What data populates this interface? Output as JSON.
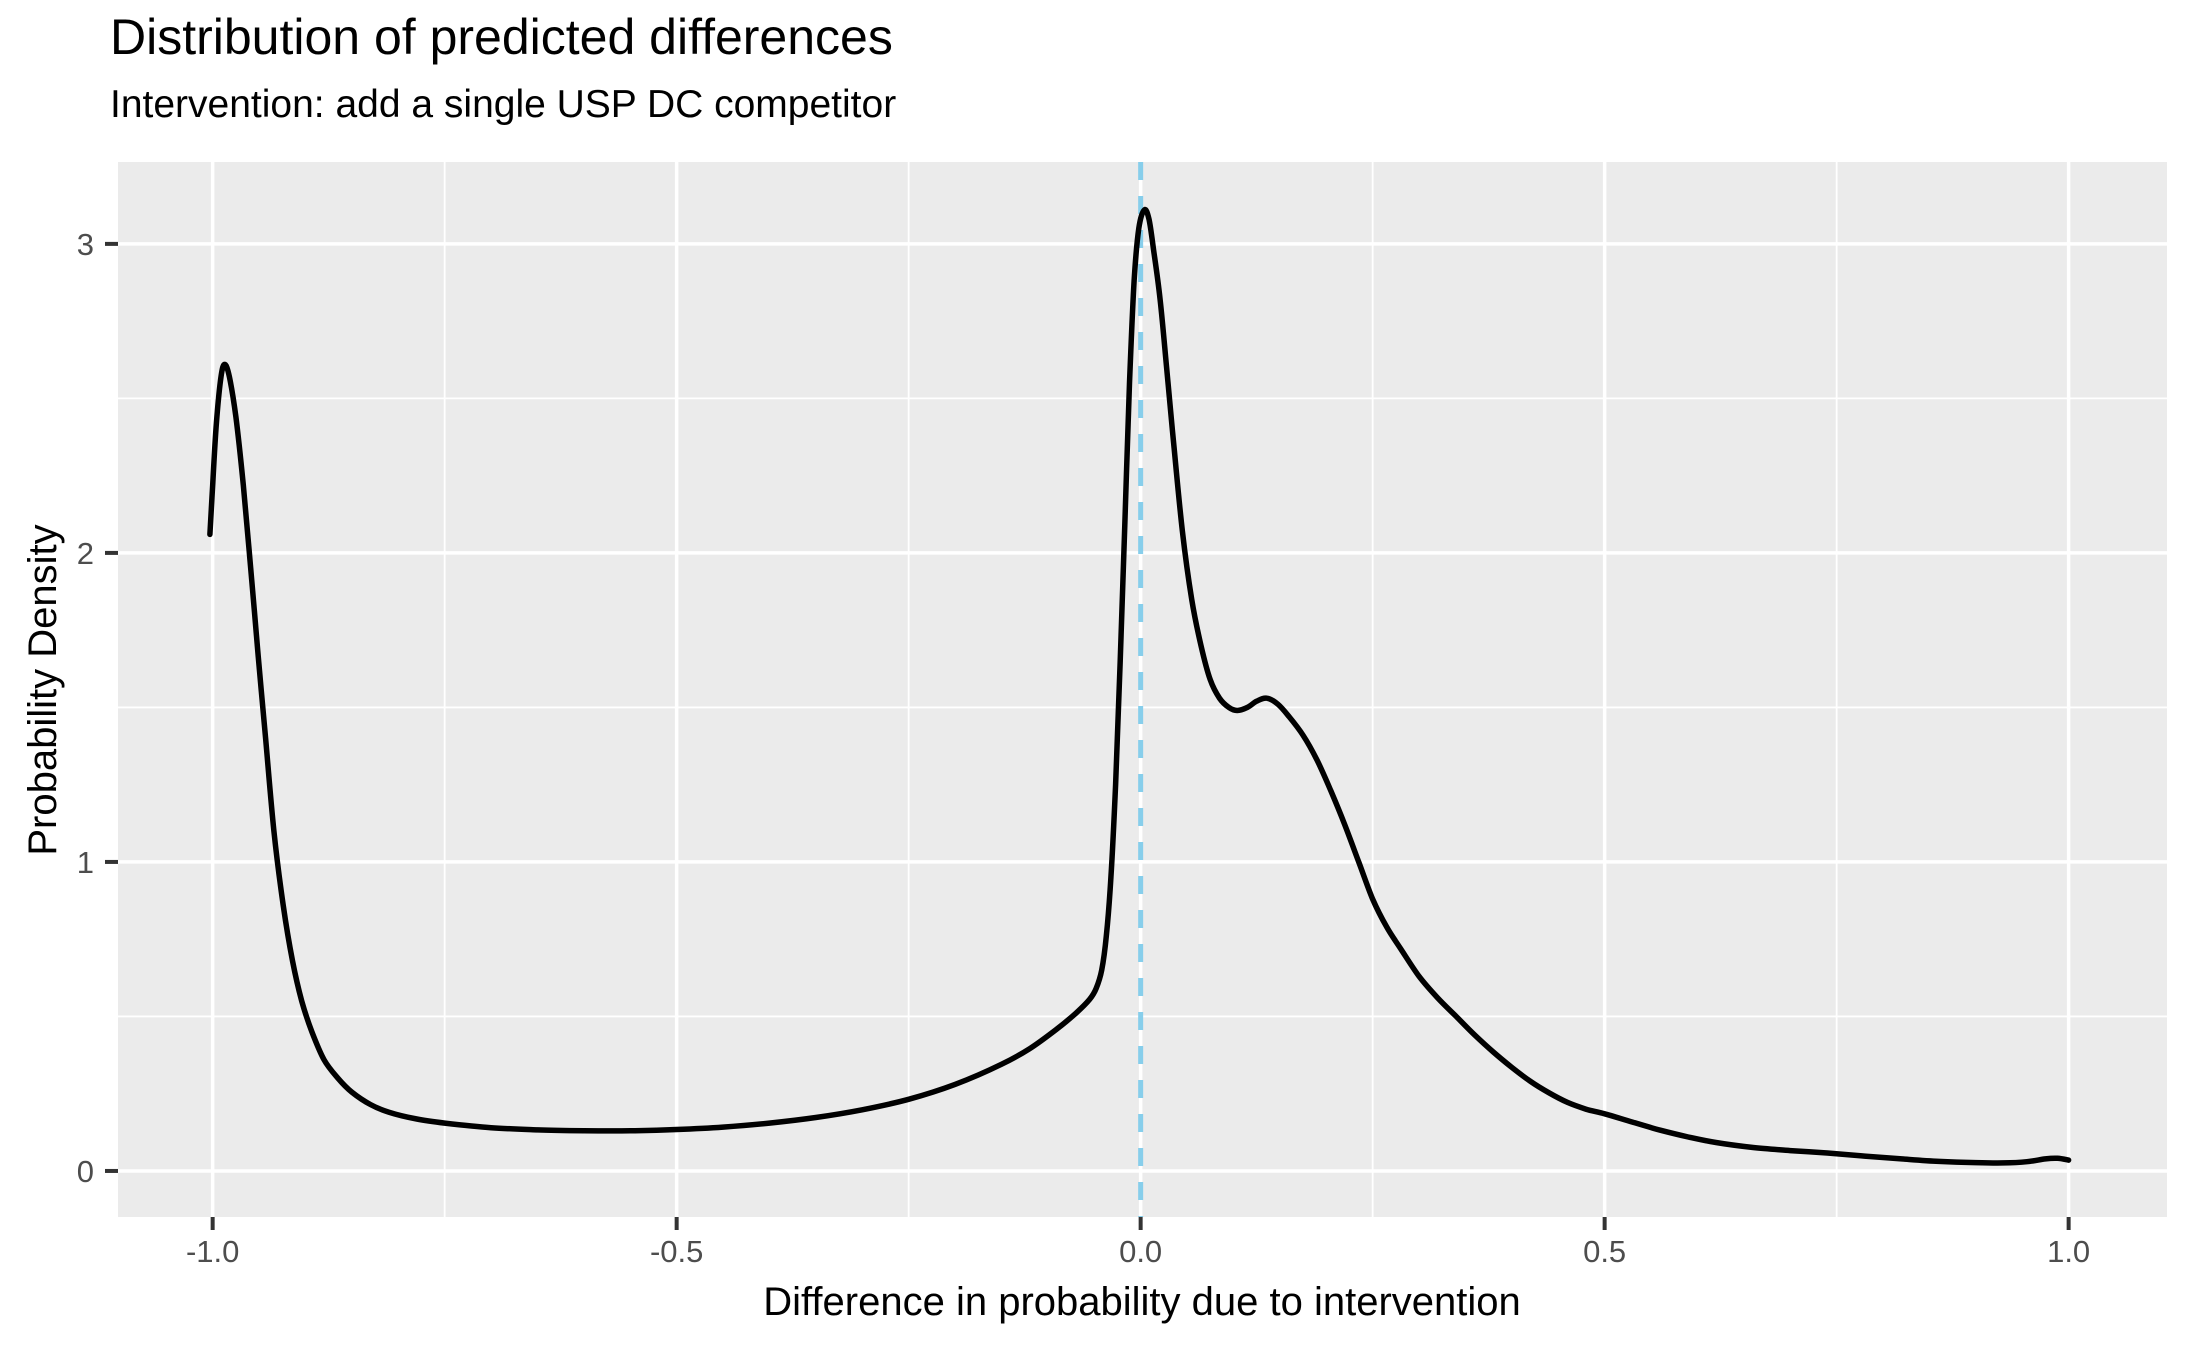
{
  "header": {
    "title": "Distribution of predicted differences",
    "subtitle": "Intervention: add a single USP DC competitor"
  },
  "chart_data": {
    "type": "line",
    "subtype": "density",
    "title": "Distribution of predicted differences",
    "subtitle": "Intervention: add a single USP DC competitor",
    "xlabel": "Difference in probability due to intervention",
    "ylabel": "Probability Density",
    "xlim": [
      -1.102,
      1.106
    ],
    "ylim": [
      -0.149,
      3.265
    ],
    "x_ticks": {
      "values": [
        -1.0,
        -0.5,
        0.0,
        0.5,
        1.0
      ],
      "labels": [
        "-1.0",
        "-0.5",
        "0.0",
        "0.5",
        "1.0"
      ]
    },
    "y_ticks": {
      "values": [
        0,
        1,
        2,
        3
      ],
      "labels": [
        "0",
        "1",
        "2",
        "3"
      ]
    },
    "x_minor_gridlines": [
      -0.75,
      -0.25,
      0.25,
      0.75
    ],
    "y_minor_gridlines": [
      0.5,
      1.5,
      2.5
    ],
    "grid": "on",
    "legend": "none",
    "panel_background_color": "#EBEBEB",
    "gridline_color": "#FFFFFF",
    "tick_label_color": "#4D4D4D",
    "tick_mark_color": "#333333",
    "reference_line": {
      "x": 0,
      "style": "dashed",
      "color": "#87CEEB",
      "orientation": "vertical"
    },
    "series": [
      {
        "name": "predicted-difference-density",
        "color": "#000000",
        "points": [
          [
            -1.003,
            2.06
          ],
          [
            -1.0,
            2.22
          ],
          [
            -0.996,
            2.42
          ],
          [
            -0.991,
            2.57
          ],
          [
            -0.987,
            2.61
          ],
          [
            -0.982,
            2.57
          ],
          [
            -0.975,
            2.44
          ],
          [
            -0.967,
            2.22
          ],
          [
            -0.959,
            1.95
          ],
          [
            -0.951,
            1.67
          ],
          [
            -0.943,
            1.4
          ],
          [
            -0.934,
            1.1
          ],
          [
            -0.924,
            0.86
          ],
          [
            -0.914,
            0.68
          ],
          [
            -0.904,
            0.55
          ],
          [
            -0.893,
            0.45
          ],
          [
            -0.88,
            0.36
          ],
          [
            -0.865,
            0.3
          ],
          [
            -0.85,
            0.255
          ],
          [
            -0.83,
            0.215
          ],
          [
            -0.81,
            0.19
          ],
          [
            -0.78,
            0.168
          ],
          [
            -0.75,
            0.155
          ],
          [
            -0.7,
            0.14
          ],
          [
            -0.65,
            0.133
          ],
          [
            -0.6,
            0.13
          ],
          [
            -0.55,
            0.13
          ],
          [
            -0.5,
            0.134
          ],
          [
            -0.45,
            0.142
          ],
          [
            -0.4,
            0.155
          ],
          [
            -0.35,
            0.173
          ],
          [
            -0.3,
            0.198
          ],
          [
            -0.25,
            0.232
          ],
          [
            -0.2,
            0.28
          ],
          [
            -0.15,
            0.345
          ],
          [
            -0.12,
            0.395
          ],
          [
            -0.09,
            0.46
          ],
          [
            -0.07,
            0.51
          ],
          [
            -0.055,
            0.555
          ],
          [
            -0.048,
            0.59
          ],
          [
            -0.042,
            0.65
          ],
          [
            -0.037,
            0.76
          ],
          [
            -0.032,
            0.95
          ],
          [
            -0.027,
            1.25
          ],
          [
            -0.022,
            1.65
          ],
          [
            -0.017,
            2.1
          ],
          [
            -0.012,
            2.55
          ],
          [
            -0.007,
            2.88
          ],
          [
            -0.002,
            3.05
          ],
          [
            0.004,
            3.11
          ],
          [
            0.009,
            3.08
          ],
          [
            0.014,
            2.98
          ],
          [
            0.021,
            2.82
          ],
          [
            0.028,
            2.6
          ],
          [
            0.036,
            2.34
          ],
          [
            0.045,
            2.07
          ],
          [
            0.055,
            1.85
          ],
          [
            0.065,
            1.7
          ],
          [
            0.075,
            1.59
          ],
          [
            0.085,
            1.53
          ],
          [
            0.095,
            1.5
          ],
          [
            0.104,
            1.49
          ],
          [
            0.115,
            1.5
          ],
          [
            0.125,
            1.52
          ],
          [
            0.136,
            1.53
          ],
          [
            0.148,
            1.51
          ],
          [
            0.16,
            1.47
          ],
          [
            0.175,
            1.41
          ],
          [
            0.19,
            1.33
          ],
          [
            0.205,
            1.23
          ],
          [
            0.22,
            1.12
          ],
          [
            0.235,
            1.0
          ],
          [
            0.25,
            0.88
          ],
          [
            0.265,
            0.79
          ],
          [
            0.28,
            0.72
          ],
          [
            0.3,
            0.63
          ],
          [
            0.32,
            0.56
          ],
          [
            0.34,
            0.5
          ],
          [
            0.36,
            0.44
          ],
          [
            0.38,
            0.385
          ],
          [
            0.4,
            0.335
          ],
          [
            0.42,
            0.29
          ],
          [
            0.44,
            0.253
          ],
          [
            0.46,
            0.222
          ],
          [
            0.48,
            0.2
          ],
          [
            0.5,
            0.185
          ],
          [
            0.53,
            0.158
          ],
          [
            0.56,
            0.132
          ],
          [
            0.59,
            0.11
          ],
          [
            0.62,
            0.092
          ],
          [
            0.66,
            0.076
          ],
          [
            0.7,
            0.066
          ],
          [
            0.74,
            0.058
          ],
          [
            0.78,
            0.048
          ],
          [
            0.82,
            0.039
          ],
          [
            0.86,
            0.031
          ],
          [
            0.9,
            0.027
          ],
          [
            0.93,
            0.026
          ],
          [
            0.955,
            0.03
          ],
          [
            0.975,
            0.039
          ],
          [
            0.988,
            0.041
          ],
          [
            1.0,
            0.035
          ]
        ]
      }
    ]
  }
}
